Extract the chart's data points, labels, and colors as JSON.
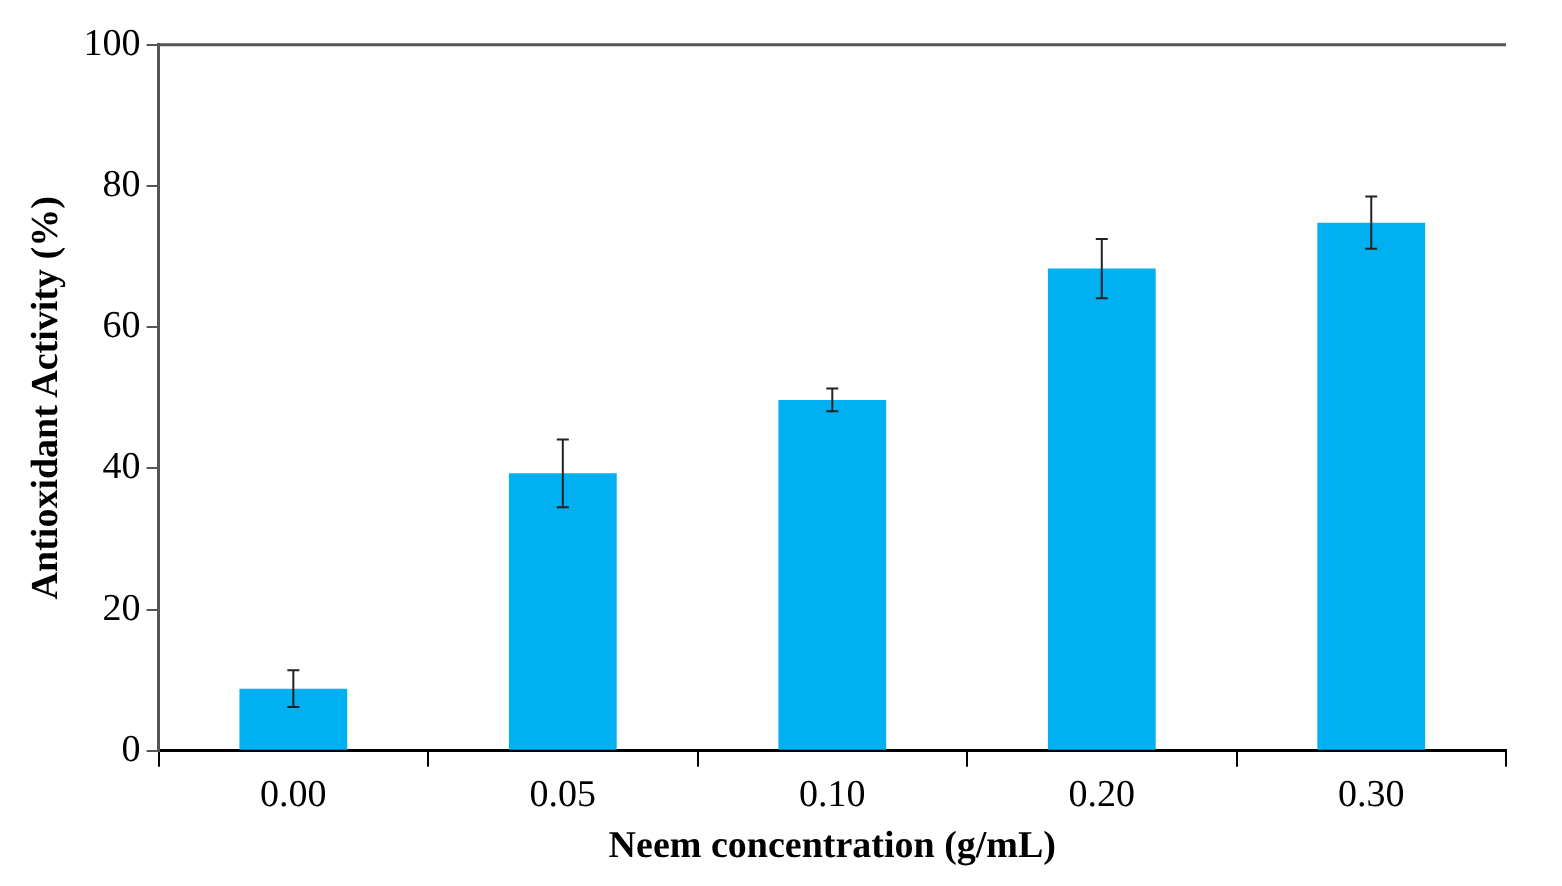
{
  "chart_data": {
    "type": "bar",
    "xlabel": "Neem concentration (g/mL)",
    "ylabel": "Antioxidant Activity (%)",
    "categories": [
      "0.00",
      "0.05",
      "0.10",
      "0.20",
      "0.30"
    ],
    "values": [
      8.8,
      39.3,
      49.7,
      68.3,
      74.8
    ],
    "errors": [
      2.6,
      4.8,
      1.6,
      4.2,
      3.7
    ],
    "color": "#00b0f0",
    "ylim": [
      0,
      100
    ],
    "yticks": [
      0,
      20,
      40,
      60,
      80,
      100
    ],
    "grid": false,
    "legend": false
  }
}
